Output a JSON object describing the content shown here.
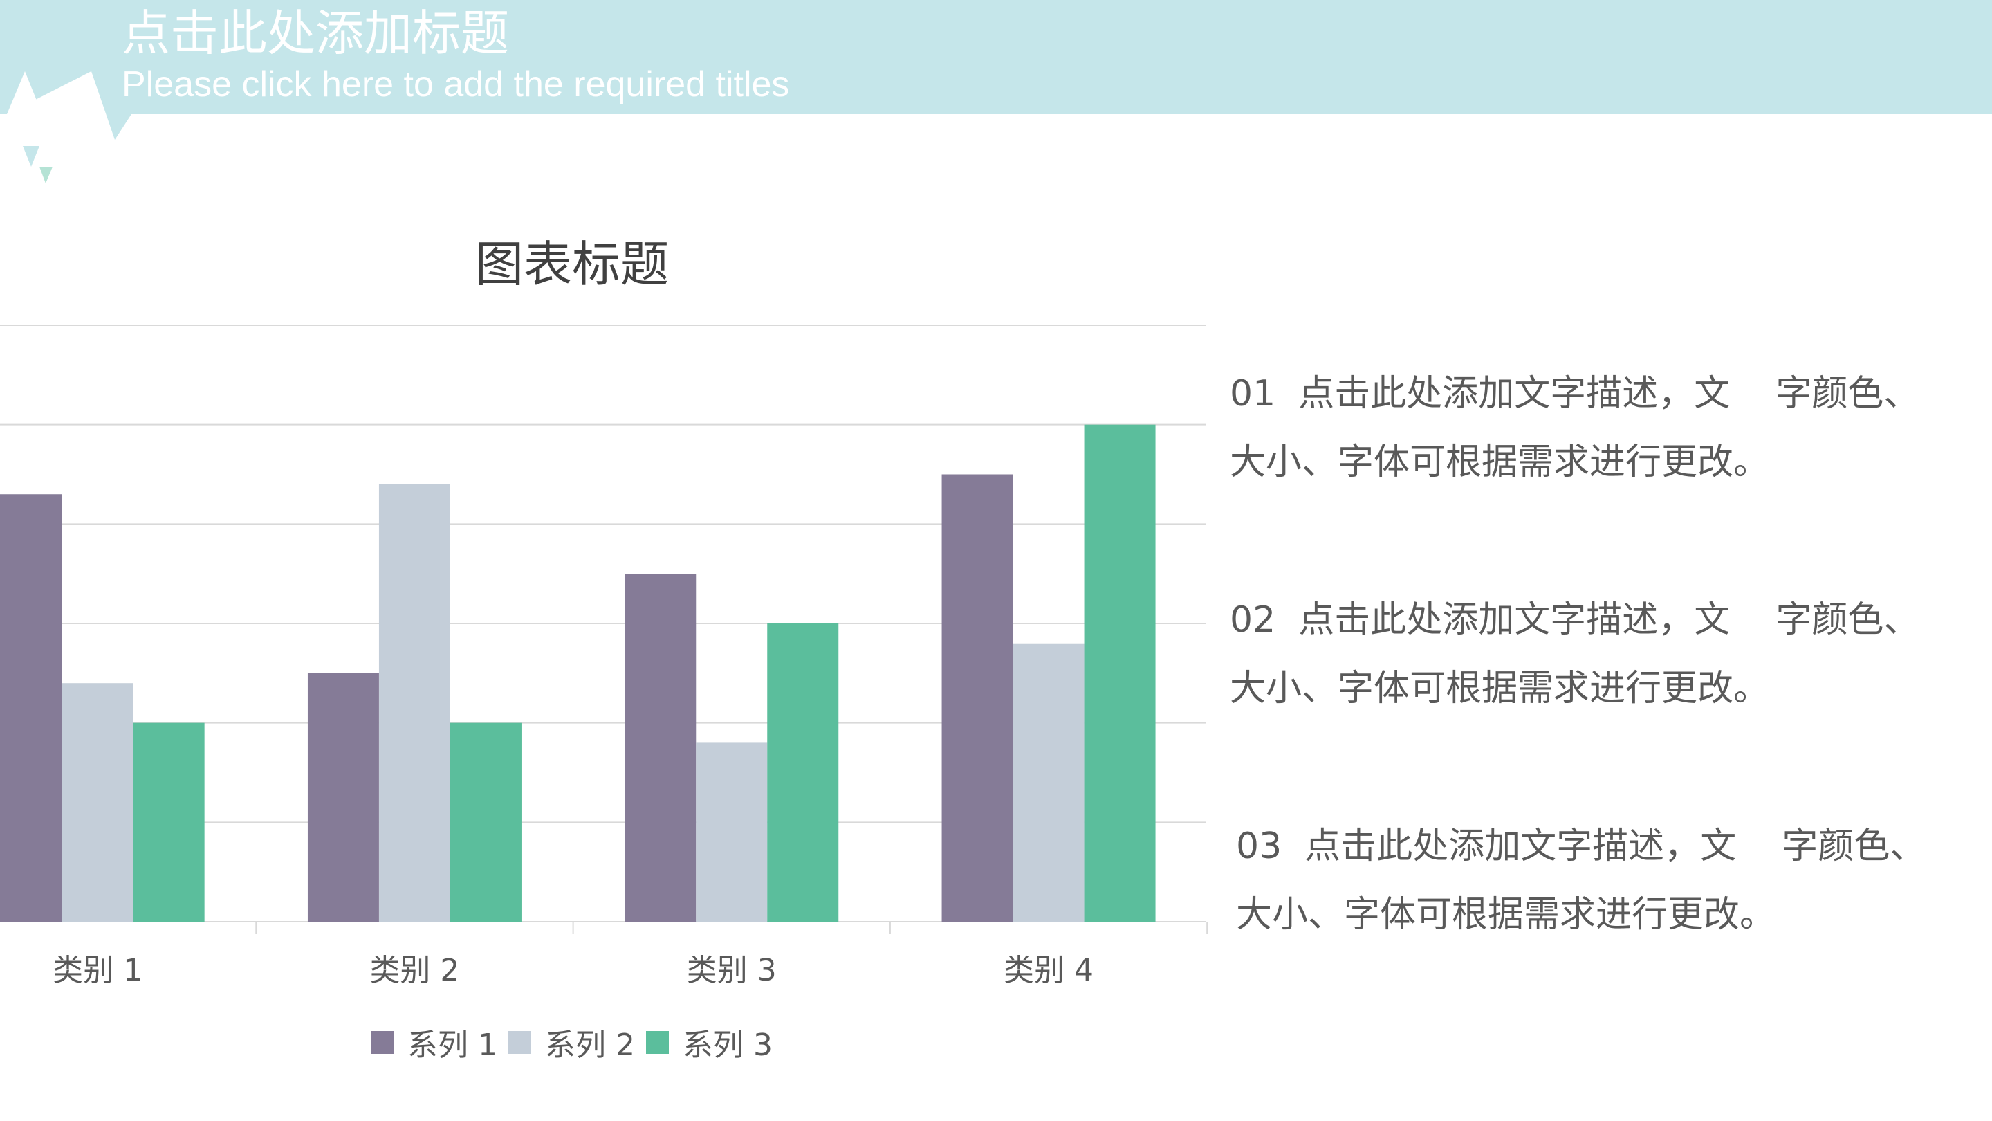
{
  "header": {
    "title": "点击此处添加标题",
    "subtitle": "Please click here to add the required titles",
    "band_color": "#c5e6ea",
    "accent_green": "#b5e3d5"
  },
  "chart_data": {
    "type": "bar",
    "title": "图表标题",
    "categories": [
      "类别 1",
      "类别 2",
      "类别 3",
      "类别 4"
    ],
    "series": [
      {
        "name": "系列 1",
        "values": [
          4.3,
          2.5,
          3.5,
          4.5
        ],
        "color": "#857b97"
      },
      {
        "name": "系列 2",
        "values": [
          2.4,
          4.4,
          1.8,
          2.8
        ],
        "color": "#c4ced9"
      },
      {
        "name": "系列 3",
        "values": [
          2,
          2,
          3,
          5
        ],
        "color": "#5bbe9c"
      }
    ],
    "ylim": [
      0,
      6
    ],
    "grid": true,
    "legend": "bottom"
  },
  "descriptions": [
    {
      "line1": "01  点击此处添加文字描述，文    字颜色、",
      "line2": "大小、字体可根据需求进行更改。"
    },
    {
      "line1": "02  点击此处添加文字描述，文    字颜色、",
      "line2": "大小、字体可根据需求进行更改。"
    },
    {
      "line1": "03  点击此处添加文字描述，文    字颜色、",
      "line2": "大小、字体可根据需求进行更改。"
    }
  ]
}
